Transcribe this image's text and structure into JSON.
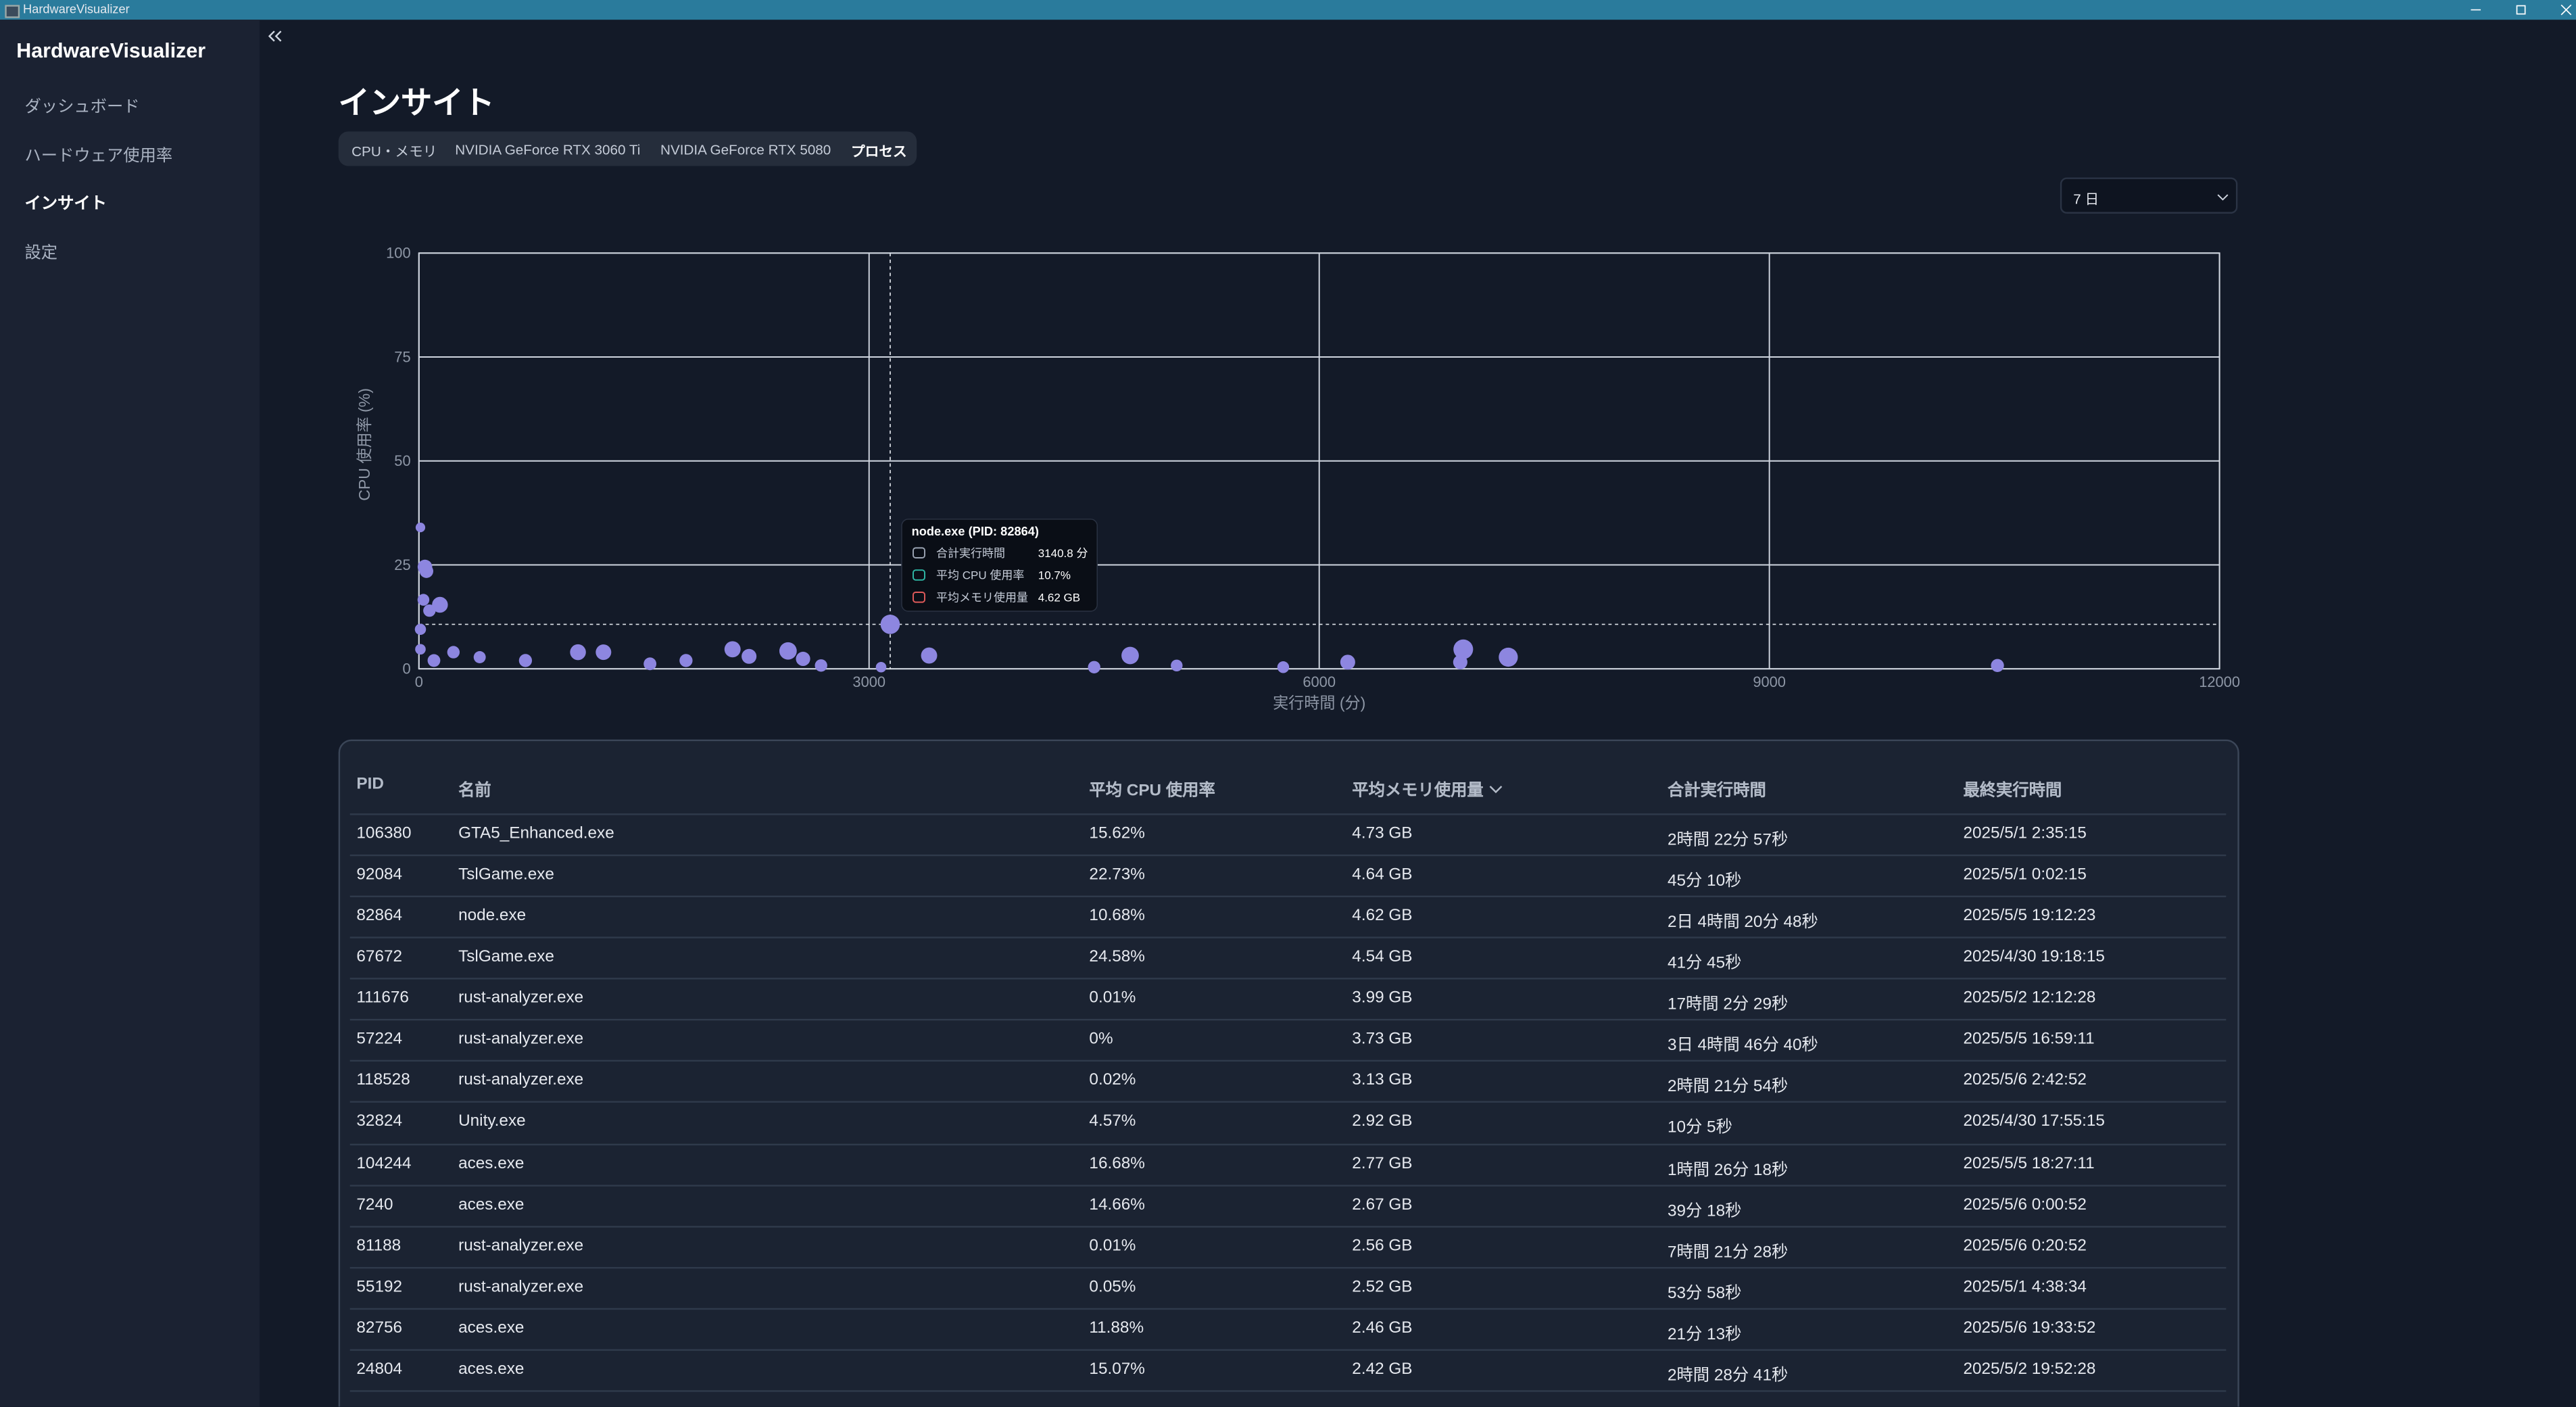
{
  "window": {
    "title": "HardwareVisualizer"
  },
  "sidebar": {
    "title": "HardwareVisualizer",
    "items": [
      "ダッシュボード",
      "ハードウェア使用率",
      "インサイト",
      "設定"
    ]
  },
  "page": {
    "title": "インサイト",
    "tabs": [
      "CPU・メモリ",
      "NVIDIA GeForce RTX 3060 Ti",
      "NVIDIA GeForce RTX 5080",
      "プロセス"
    ],
    "period": "7 日"
  },
  "chart_data": {
    "type": "scatter",
    "xlabel": "実行時間 (分)",
    "ylabel": "CPU 使用率 (%)",
    "color": "#8d86e0",
    "x": [
      3140.8,
      10,
      40,
      50,
      30,
      140,
      70,
      10,
      10,
      100,
      230,
      405,
      710,
      1060,
      1230,
      1540,
      1780,
      2090,
      2200,
      2460,
      2560,
      2680,
      3080,
      3400,
      4500,
      4740,
      5050,
      5760,
      6190,
      6960,
      7260,
      6940,
      10520
    ],
    "values": [
      10.7,
      34,
      24.5,
      23.5,
      16.6,
      15.4,
      14,
      9.5,
      4.7,
      2,
      4,
      2.8,
      2,
      4,
      4,
      1.2,
      2,
      4.7,
      3,
      4.3,
      2.4,
      0.8,
      0.4,
      3.2,
      0.4,
      3.2,
      0.8,
      0.4,
      1.6,
      4.7,
      2.8,
      1.6,
      0.8
    ],
    "sizes": [
      4.62,
      1.5,
      3.1,
      2.8,
      2.2,
      3.5,
      2.4,
      2.0,
      1.8,
      2.5,
      2.4,
      2.3,
      2.6,
      3.5,
      3.4,
      2.5,
      2.6,
      3.6,
      3.2,
      4.0,
      3.0,
      2.4,
      1.8,
      3.6,
      2.4,
      4.0,
      2.2,
      2.2,
      3.2,
      4.73,
      4.54,
      3.0,
      2.6
    ],
    "xlim": [
      0,
      12000
    ],
    "ylim": [
      0,
      100
    ],
    "xticks": [
      0,
      3000,
      6000,
      9000,
      12000
    ],
    "yticks": [
      0,
      25,
      50,
      75,
      100
    ],
    "grid": true,
    "tooltip": {
      "title": "node.exe (PID: 82864)",
      "rows": [
        {
          "label": "合計実行時間",
          "value": "3140.8 分"
        },
        {
          "label": "平均 CPU 使用率",
          "value": "10.7%"
        },
        {
          "label": "平均メモリ使用量",
          "value": "4.62 GB"
        }
      ]
    }
  },
  "table": {
    "columns": [
      "PID",
      "名前",
      "平均 CPU 使用率",
      "平均メモリ使用量",
      "合計実行時間",
      "最終実行時間"
    ],
    "rows": [
      [
        "106380",
        "GTA5_Enhanced.exe",
        "15.62%",
        "4.73 GB",
        "2時間 22分 57秒",
        "2025/5/1 2:35:15"
      ],
      [
        "92084",
        "TslGame.exe",
        "22.73%",
        "4.64 GB",
        "45分 10秒",
        "2025/5/1 0:02:15"
      ],
      [
        "82864",
        "node.exe",
        "10.68%",
        "4.62 GB",
        "2日 4時間 20分 48秒",
        "2025/5/5 19:12:23"
      ],
      [
        "67672",
        "TslGame.exe",
        "24.58%",
        "4.54 GB",
        "41分 45秒",
        "2025/4/30 19:18:15"
      ],
      [
        "111676",
        "rust-analyzer.exe",
        "0.01%",
        "3.99 GB",
        "17時間 2分 29秒",
        "2025/5/2 12:12:28"
      ],
      [
        "57224",
        "rust-analyzer.exe",
        "0%",
        "3.73 GB",
        "3日 4時間 46分 40秒",
        "2025/5/5 16:59:11"
      ],
      [
        "118528",
        "rust-analyzer.exe",
        "0.02%",
        "3.13 GB",
        "2時間 21分 54秒",
        "2025/5/6 2:42:52"
      ],
      [
        "32824",
        "Unity.exe",
        "4.57%",
        "2.92 GB",
        "10分 5秒",
        "2025/4/30 17:55:15"
      ],
      [
        "104244",
        "aces.exe",
        "16.68%",
        "2.77 GB",
        "1時間 26分 18秒",
        "2025/5/5 18:27:11"
      ],
      [
        "7240",
        "aces.exe",
        "14.66%",
        "2.67 GB",
        "39分 18秒",
        "2025/5/6 0:00:52"
      ],
      [
        "81188",
        "rust-analyzer.exe",
        "0.01%",
        "2.56 GB",
        "7時間 21分 28秒",
        "2025/5/6 0:20:52"
      ],
      [
        "55192",
        "rust-analyzer.exe",
        "0.05%",
        "2.52 GB",
        "53分 58秒",
        "2025/5/1 4:38:34"
      ],
      [
        "82756",
        "aces.exe",
        "11.88%",
        "2.46 GB",
        "21分 13秒",
        "2025/5/6 19:33:52"
      ],
      [
        "24804",
        "aces.exe",
        "15.07%",
        "2.42 GB",
        "2時間 28分 41秒",
        "2025/5/2 19:52:28"
      ]
    ]
  }
}
